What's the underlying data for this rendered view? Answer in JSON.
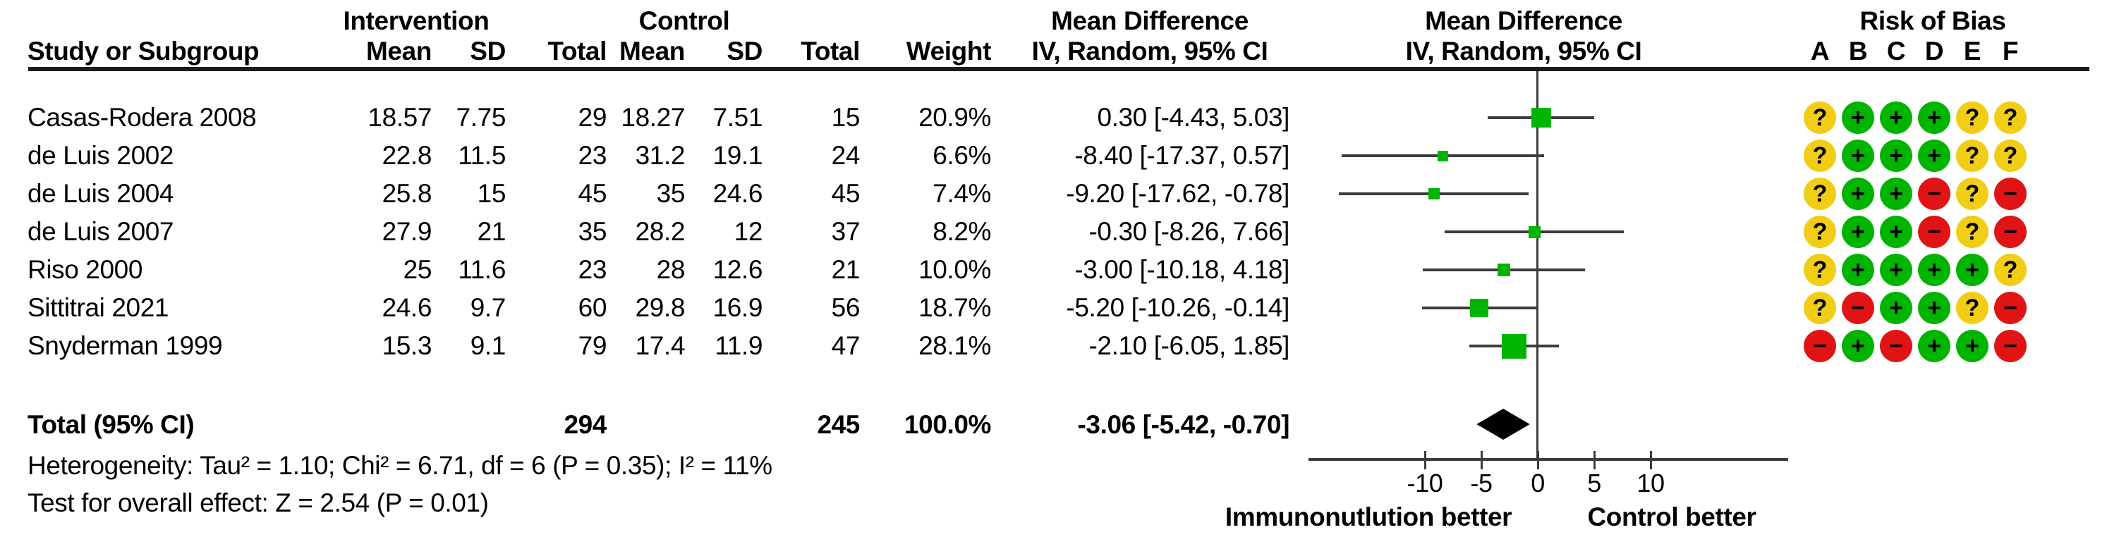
{
  "headers": {
    "intervention": "Intervention",
    "control": "Control",
    "mean_difference": "Mean Difference",
    "risk_of_bias": "Risk of Bias",
    "study": "Study or Subgroup",
    "mean": "Mean",
    "sd": "SD",
    "total": "Total",
    "weight": "Weight",
    "iv_random": "IV, Random, 95% CI"
  },
  "table": {
    "rows": [
      {
        "study": "Casas-Rodera 2008",
        "i_mean": "18.57",
        "i_sd": "7.75",
        "i_total": "29",
        "c_mean": "18.27",
        "c_sd": "7.51",
        "c_total": "15",
        "weight": "20.9%",
        "ci": "0.30 [-4.43, 5.03]",
        "md": 0.3,
        "lo": -4.43,
        "hi": 5.03,
        "w": 20.9,
        "rob": [
          "?",
          "+",
          "+",
          "+",
          "?",
          "?"
        ]
      },
      {
        "study": "de Luis 2002",
        "i_mean": "22.8",
        "i_sd": "11.5",
        "i_total": "23",
        "c_mean": "31.2",
        "c_sd": "19.1",
        "c_total": "24",
        "weight": "6.6%",
        "ci": "-8.40 [-17.37, 0.57]",
        "md": -8.4,
        "lo": -17.37,
        "hi": 0.57,
        "w": 6.6,
        "rob": [
          "?",
          "+",
          "+",
          "+",
          "?",
          "?"
        ]
      },
      {
        "study": "de Luis 2004",
        "i_mean": "25.8",
        "i_sd": "15",
        "i_total": "45",
        "c_mean": "35",
        "c_sd": "24.6",
        "c_total": "45",
        "weight": "7.4%",
        "ci": "-9.20 [-17.62, -0.78]",
        "md": -9.2,
        "lo": -17.62,
        "hi": -0.78,
        "w": 7.4,
        "rob": [
          "?",
          "+",
          "+",
          "−",
          "?",
          "−"
        ]
      },
      {
        "study": "de Luis 2007",
        "i_mean": "27.9",
        "i_sd": "21",
        "i_total": "35",
        "c_mean": "28.2",
        "c_sd": "12",
        "c_total": "37",
        "weight": "8.2%",
        "ci": "-0.30 [-8.26, 7.66]",
        "md": -0.3,
        "lo": -8.26,
        "hi": 7.66,
        "w": 8.2,
        "rob": [
          "?",
          "+",
          "+",
          "−",
          "?",
          "−"
        ]
      },
      {
        "study": "Riso 2000",
        "i_mean": "25",
        "i_sd": "11.6",
        "i_total": "23",
        "c_mean": "28",
        "c_sd": "12.6",
        "c_total": "21",
        "weight": "10.0%",
        "ci": "-3.00 [-10.18, 4.18]",
        "md": -3.0,
        "lo": -10.18,
        "hi": 4.18,
        "w": 10.0,
        "rob": [
          "?",
          "+",
          "+",
          "+",
          "+",
          "?"
        ]
      },
      {
        "study": "Sittitrai 2021",
        "i_mean": "24.6",
        "i_sd": "9.7",
        "i_total": "60",
        "c_mean": "29.8",
        "c_sd": "16.9",
        "c_total": "56",
        "weight": "18.7%",
        "ci": "-5.20 [-10.26, -0.14]",
        "md": -5.2,
        "lo": -10.26,
        "hi": -0.14,
        "w": 18.7,
        "rob": [
          "?",
          "−",
          "+",
          "+",
          "?",
          "−"
        ]
      },
      {
        "study": "Snyderman 1999",
        "i_mean": "15.3",
        "i_sd": "9.1",
        "i_total": "79",
        "c_mean": "17.4",
        "c_sd": "11.9",
        "c_total": "47",
        "weight": "28.1%",
        "ci": "-2.10 [-6.05, 1.85]",
        "md": -2.1,
        "lo": -6.05,
        "hi": 1.85,
        "w": 28.1,
        "rob": [
          "−",
          "+",
          "−",
          "+",
          "+",
          "−"
        ]
      }
    ],
    "total_row": {
      "study": "Total (95% CI)",
      "i_total": "294",
      "c_total": "245",
      "weight": "100.0%",
      "ci": "-3.06 [-5.42, -0.70]",
      "md": -3.06,
      "lo": -5.42,
      "hi": -0.7
    }
  },
  "rob": {
    "letters": [
      "A",
      "B",
      "C",
      "D",
      "E",
      "F"
    ]
  },
  "footers": {
    "heterogeneity": "Heterogeneity: Tau² = 1.10; Chi² = 6.71, df = 6 (P = 0.35); I² = 11%",
    "overall_effect": "Test for overall effect: Z = 2.54 (P = 0.01)"
  },
  "axis": {
    "ticks": [
      -10,
      -5,
      0,
      5,
      10
    ],
    "tick_labels": [
      "-10",
      "-5",
      "0",
      "5",
      "10"
    ],
    "label_left": "Immunonutlution better",
    "label_right": "Control better"
  },
  "colors": {
    "marker_green": "#00b400",
    "rob_green": "#00b400",
    "rob_yellow": "#f1ce15",
    "rob_red": "#e01414",
    "line": "#3c3c3c",
    "diamond": "#000000"
  },
  "chart_data": {
    "type": "forest",
    "effect_label": "Mean Difference IV, Random, 95% CI",
    "x_axis": {
      "ticks": [
        -10,
        -5,
        0,
        5,
        10
      ],
      "label_left": "Immunonutlution better",
      "label_right": "Control better"
    },
    "studies": [
      {
        "name": "Casas-Rodera 2008",
        "intervention": {
          "mean": 18.57,
          "sd": 7.75,
          "total": 29
        },
        "control": {
          "mean": 18.27,
          "sd": 7.51,
          "total": 15
        },
        "weight_pct": 20.9,
        "md": 0.3,
        "ci95": [
          -4.43,
          5.03
        ],
        "risk_of_bias": [
          "?",
          "+",
          "+",
          "+",
          "?",
          "?"
        ]
      },
      {
        "name": "de Luis 2002",
        "intervention": {
          "mean": 22.8,
          "sd": 11.5,
          "total": 23
        },
        "control": {
          "mean": 31.2,
          "sd": 19.1,
          "total": 24
        },
        "weight_pct": 6.6,
        "md": -8.4,
        "ci95": [
          -17.37,
          0.57
        ],
        "risk_of_bias": [
          "?",
          "+",
          "+",
          "+",
          "?",
          "?"
        ]
      },
      {
        "name": "de Luis 2004",
        "intervention": {
          "mean": 25.8,
          "sd": 15,
          "total": 45
        },
        "control": {
          "mean": 35,
          "sd": 24.6,
          "total": 45
        },
        "weight_pct": 7.4,
        "md": -9.2,
        "ci95": [
          -17.62,
          -0.78
        ],
        "risk_of_bias": [
          "?",
          "+",
          "+",
          "−",
          "?",
          "−"
        ]
      },
      {
        "name": "de Luis 2007",
        "intervention": {
          "mean": 27.9,
          "sd": 21,
          "total": 35
        },
        "control": {
          "mean": 28.2,
          "sd": 12,
          "total": 37
        },
        "weight_pct": 8.2,
        "md": -0.3,
        "ci95": [
          -8.26,
          7.66
        ],
        "risk_of_bias": [
          "?",
          "+",
          "+",
          "−",
          "?",
          "−"
        ]
      },
      {
        "name": "Riso 2000",
        "intervention": {
          "mean": 25,
          "sd": 11.6,
          "total": 23
        },
        "control": {
          "mean": 28,
          "sd": 12.6,
          "total": 21
        },
        "weight_pct": 10.0,
        "md": -3.0,
        "ci95": [
          -10.18,
          4.18
        ],
        "risk_of_bias": [
          "?",
          "+",
          "+",
          "+",
          "+",
          "?"
        ]
      },
      {
        "name": "Sittitrai 2021",
        "intervention": {
          "mean": 24.6,
          "sd": 9.7,
          "total": 60
        },
        "control": {
          "mean": 29.8,
          "sd": 16.9,
          "total": 56
        },
        "weight_pct": 18.7,
        "md": -5.2,
        "ci95": [
          -10.26,
          -0.14
        ],
        "risk_of_bias": [
          "?",
          "−",
          "+",
          "+",
          "?",
          "−"
        ]
      },
      {
        "name": "Snyderman 1999",
        "intervention": {
          "mean": 15.3,
          "sd": 9.1,
          "total": 79
        },
        "control": {
          "mean": 17.4,
          "sd": 11.9,
          "total": 47
        },
        "weight_pct": 28.1,
        "md": -2.1,
        "ci95": [
          -6.05,
          1.85
        ],
        "risk_of_bias": [
          "−",
          "+",
          "−",
          "+",
          "+",
          "−"
        ]
      }
    ],
    "total": {
      "name": "Total (95% CI)",
      "intervention_total": 294,
      "control_total": 245,
      "weight_pct": 100.0,
      "md": -3.06,
      "ci95": [
        -5.42,
        -0.7
      ]
    },
    "heterogeneity": {
      "tau2": 1.1,
      "chi2": 6.71,
      "df": 6,
      "p": 0.35,
      "i2_pct": 11
    },
    "overall_effect": {
      "z": 2.54,
      "p": 0.01
    }
  }
}
